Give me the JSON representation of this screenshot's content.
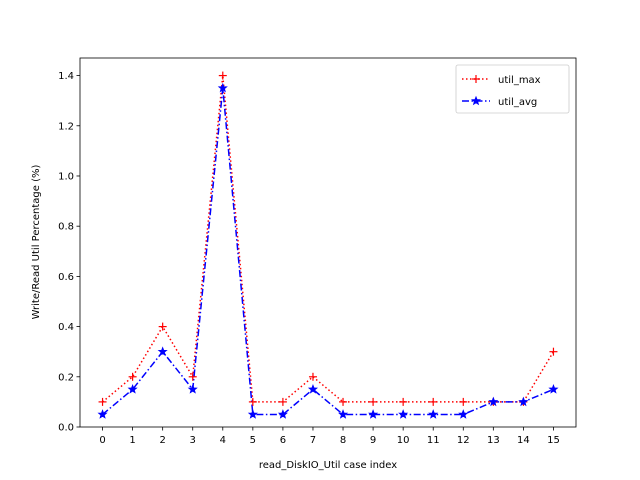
{
  "chart_data": {
    "type": "line",
    "title": "",
    "xlabel": "read_DiskIO_Util case index",
    "ylabel": "Write/Read Util Percentage (%)",
    "x": [
      0,
      1,
      2,
      3,
      4,
      5,
      6,
      7,
      8,
      9,
      10,
      11,
      12,
      13,
      14,
      15
    ],
    "xlim": [
      -0.75,
      15.75
    ],
    "ylim": [
      0,
      1.47
    ],
    "yticks": [
      0.0,
      0.2,
      0.4,
      0.6,
      0.8,
      1.0,
      1.2,
      1.4
    ],
    "ytick_labels": [
      "0.0",
      "0.2",
      "0.4",
      "0.6",
      "0.8",
      "1.0",
      "1.2",
      "1.4"
    ],
    "xtick_labels": [
      "0",
      "1",
      "2",
      "3",
      "4",
      "5",
      "6",
      "7",
      "8",
      "9",
      "10",
      "11",
      "12",
      "13",
      "14",
      "15"
    ],
    "grid": false,
    "legend_position": "top-right",
    "series": [
      {
        "name": "util_max",
        "color": "#ff0000",
        "linestyle": "dotted",
        "marker": "plus",
        "values": [
          0.1,
          0.2,
          0.4,
          0.2,
          1.4,
          0.1,
          0.1,
          0.2,
          0.1,
          0.1,
          0.1,
          0.1,
          0.1,
          0.1,
          0.1,
          0.3
        ]
      },
      {
        "name": "util_avg",
        "color": "#0000ff",
        "linestyle": "dashdot",
        "marker": "star",
        "values": [
          0.05,
          0.15,
          0.3,
          0.15,
          1.35,
          0.05,
          0.05,
          0.15,
          0.05,
          0.05,
          0.05,
          0.05,
          0.05,
          0.1,
          0.1,
          0.15
        ]
      }
    ]
  }
}
